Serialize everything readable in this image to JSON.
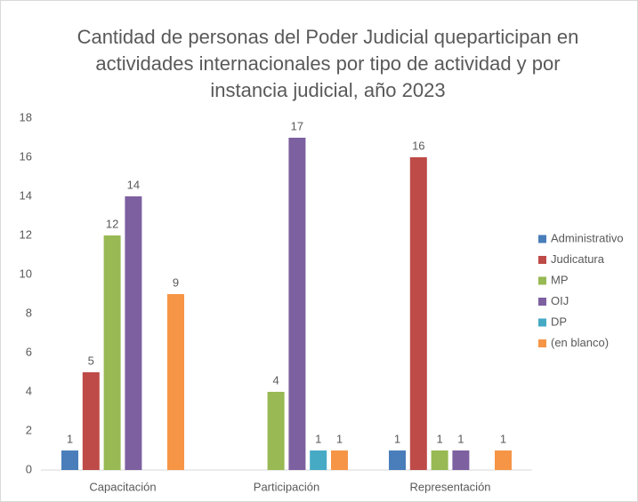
{
  "chart_data": {
    "type": "bar",
    "title": "Cantidad de personas del Poder Judicial queparticipan en actividades internacionales por tipo de actividad y por instancia judicial, año 2023",
    "categories": [
      "Capacitación",
      "Participación",
      "Representación"
    ],
    "series": [
      {
        "name": "Administrativo",
        "color": "#4a7ebb",
        "values": [
          1,
          null,
          1
        ]
      },
      {
        "name": "Judicatura",
        "color": "#be4b48",
        "values": [
          5,
          null,
          16
        ]
      },
      {
        "name": "MP",
        "color": "#98b954",
        "values": [
          12,
          4,
          1
        ]
      },
      {
        "name": "OIJ",
        "color": "#7d60a0",
        "values": [
          14,
          17,
          1
        ]
      },
      {
        "name": "DP",
        "color": "#46aac5",
        "values": [
          null,
          1,
          null
        ]
      },
      {
        "name": "(en blanco)",
        "color": "#f69546",
        "values": [
          9,
          1,
          1
        ]
      }
    ],
    "ylim": [
      0,
      18
    ],
    "yticks": [
      0,
      2,
      4,
      6,
      8,
      10,
      12,
      14,
      16,
      18
    ],
    "grid": false,
    "legend": "right"
  }
}
